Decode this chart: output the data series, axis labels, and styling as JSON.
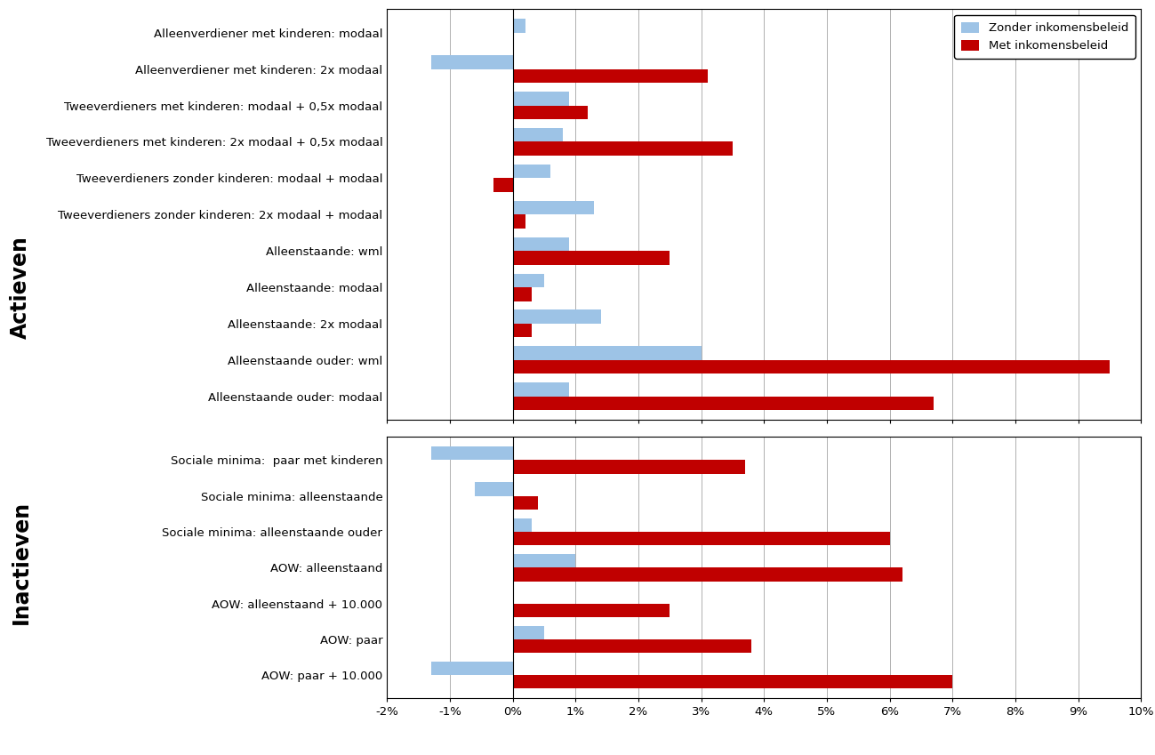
{
  "actieven_labels": [
    "Alleenstaande ouder: modaal",
    "Alleenstaande ouder: wml",
    "Alleenstaande: 2x modaal",
    "Alleenstaande: modaal",
    "Alleenstaande: wml",
    "Tweeverdieners zonder kinderen: 2x modaal + modaal",
    "Tweeverdieners zonder kinderen: modaal + modaal",
    "Tweeverdieners met kinderen: 2x modaal + 0,5x modaal",
    "Tweeverdieners met kinderen: modaal + 0,5x modaal",
    "Alleenverdiener met kinderen: 2x modaal",
    "Alleenverdiener met kinderen: modaal"
  ],
  "actieven_zonder": [
    0.009,
    0.03,
    0.014,
    0.005,
    0.009,
    0.013,
    0.006,
    0.008,
    0.009,
    -0.013,
    0.002
  ],
  "actieven_met": [
    0.067,
    0.095,
    0.003,
    0.003,
    0.025,
    0.002,
    -0.003,
    0.035,
    0.012,
    0.031,
    0.0
  ],
  "inactieven_labels": [
    "AOW: paar + 10.000",
    "AOW: paar",
    "AOW: alleenstaand + 10.000",
    "AOW: alleenstaand",
    "Sociale minima: alleenstaande ouder",
    "Sociale minima: alleenstaande",
    "Sociale minima:  paar met kinderen"
  ],
  "inactieven_zonder": [
    -0.013,
    0.005,
    0.0,
    0.01,
    0.003,
    -0.006,
    -0.013
  ],
  "inactieven_met": [
    0.07,
    0.038,
    0.025,
    0.062,
    0.06,
    0.004,
    0.037
  ],
  "color_zonder": "#9DC3E6",
  "color_met": "#C00000",
  "xlim": [
    -0.02,
    0.1
  ],
  "xticks": [
    -0.02,
    -0.01,
    0.0,
    0.01,
    0.02,
    0.03,
    0.04,
    0.05,
    0.06,
    0.07,
    0.08,
    0.09,
    0.1
  ],
  "xtick_labels": [
    "-2%",
    "-1%",
    "0%",
    "1%",
    "2%",
    "3%",
    "4%",
    "5%",
    "6%",
    "7%",
    "8%",
    "9%",
    "10%"
  ],
  "legend_zonder": "Zonder inkomensbeleid",
  "legend_met": "Met inkomensbeleid",
  "label_actieven": "Actieven",
  "label_inactieven": "Inactieven"
}
